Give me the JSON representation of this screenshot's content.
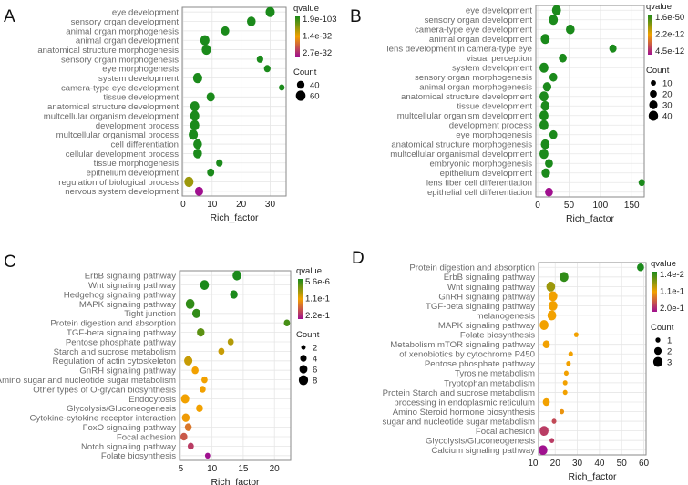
{
  "colors": {
    "low_q": "#1b8a1b",
    "mid_q": "#f2a100",
    "high_q": "#a0108f",
    "grid": "#e6e6e6",
    "frame": "#8a8a8a"
  },
  "chart_data": [
    {
      "panel": "A",
      "type": "scatter",
      "xlabel": "Rich_factor",
      "xlim": [
        -0.3,
        35.5
      ],
      "xticks": [
        0,
        10,
        20,
        30
      ],
      "color_legend": {
        "title": "qvalue",
        "labels": [
          "1.9e-103",
          "1.4e-32",
          "2.7e-32"
        ]
      },
      "size_legend": {
        "title": "Count",
        "values": [
          40,
          60
        ]
      },
      "size_range": [
        25,
        60
      ],
      "terms": [
        {
          "label": "eye development",
          "x": 30,
          "count": 60,
          "q_pos": 0
        },
        {
          "label": "sensory organ development",
          "x": 23.5,
          "count": 55,
          "q_pos": 0
        },
        {
          "label": "animal organ morphogenesis",
          "x": 14.5,
          "count": 50,
          "q_pos": 0
        },
        {
          "label": "animal organ development",
          "x": 7.5,
          "count": 60,
          "q_pos": 0
        },
        {
          "label": "anatomical structure morphogenesis",
          "x": 8,
          "count": 60,
          "q_pos": 0
        },
        {
          "label": "sensory organ morphogenesis",
          "x": 26.5,
          "count": 35,
          "q_pos": 0
        },
        {
          "label": "eye morphogenesis",
          "x": 29,
          "count": 35,
          "q_pos": 0
        },
        {
          "label": "system development",
          "x": 5,
          "count": 60,
          "q_pos": 0
        },
        {
          "label": "camera-type eye development",
          "x": 34,
          "count": 28,
          "q_pos": 0
        },
        {
          "label": "tissue development",
          "x": 9.5,
          "count": 50,
          "q_pos": 0
        },
        {
          "label": "anatomical structure development",
          "x": 4,
          "count": 60,
          "q_pos": 0
        },
        {
          "label": "multcellular organism development",
          "x": 4,
          "count": 60,
          "q_pos": 0
        },
        {
          "label": "development process",
          "x": 4,
          "count": 60,
          "q_pos": 0
        },
        {
          "label": "multcellular organismal process",
          "x": 3.5,
          "count": 60,
          "q_pos": 0
        },
        {
          "label": "cell differentiation",
          "x": 5,
          "count": 55,
          "q_pos": 0
        },
        {
          "label": "cellular development process",
          "x": 5,
          "count": 55,
          "q_pos": 0
        },
        {
          "label": "tissue morphogenesis",
          "x": 12.5,
          "count": 35,
          "q_pos": 0
        },
        {
          "label": "epithelium development",
          "x": 9.5,
          "count": 40,
          "q_pos": 0
        },
        {
          "label": "regulation of biological process",
          "x": 2,
          "count": 60,
          "q_pos": 0.3
        },
        {
          "label": "nervous system development",
          "x": 5.5,
          "count": 50,
          "q_pos": 1
        }
      ]
    },
    {
      "panel": "B",
      "type": "scatter",
      "xlabel": "Rich_factor",
      "xlim": [
        -3,
        170
      ],
      "xticks": [
        0,
        50,
        100,
        150
      ],
      "color_legend": {
        "title": "qvalue",
        "labels": [
          "1.6e-50",
          "2.2e-12",
          "4.5e-12"
        ]
      },
      "size_legend": {
        "title": "Count",
        "values": [
          10,
          20,
          30,
          40
        ]
      },
      "size_range": [
        8,
        42
      ],
      "terms": [
        {
          "label": "eye development",
          "x": 30,
          "count": 40,
          "q_pos": 0
        },
        {
          "label": "sensory organ development",
          "x": 25,
          "count": 40,
          "q_pos": 0
        },
        {
          "label": "camera-type eye development",
          "x": 52,
          "count": 38,
          "q_pos": 0
        },
        {
          "label": "animal organ development",
          "x": 12,
          "count": 40,
          "q_pos": 0
        },
        {
          "label": "lens development in camera-type eye",
          "x": 120,
          "count": 25,
          "q_pos": 0
        },
        {
          "label": "visual perception",
          "x": 40,
          "count": 30,
          "q_pos": 0
        },
        {
          "label": "system development",
          "x": 10,
          "count": 40,
          "q_pos": 0
        },
        {
          "label": "sensory organ morphogenesis",
          "x": 25,
          "count": 30,
          "q_pos": 0
        },
        {
          "label": "animal organ morphogenesis",
          "x": 15,
          "count": 35,
          "q_pos": 0
        },
        {
          "label": "anatomical structure development",
          "x": 10,
          "count": 40,
          "q_pos": 0
        },
        {
          "label": "tissue development",
          "x": 12,
          "count": 38,
          "q_pos": 0
        },
        {
          "label": "multcellular organism development",
          "x": 10,
          "count": 40,
          "q_pos": 0
        },
        {
          "label": "development process",
          "x": 10,
          "count": 40,
          "q_pos": 0
        },
        {
          "label": "eye morphogenesis",
          "x": 25,
          "count": 30,
          "q_pos": 0
        },
        {
          "label": "anatomical structure morphogenesis",
          "x": 12,
          "count": 38,
          "q_pos": 0
        },
        {
          "label": "multcellular organismal development",
          "x": 10,
          "count": 40,
          "q_pos": 0
        },
        {
          "label": "embryonic morphogenesis",
          "x": 18,
          "count": 30,
          "q_pos": 0
        },
        {
          "label": "epithelium development",
          "x": 13,
          "count": 35,
          "q_pos": 0
        },
        {
          "label": "lens fiber cell differentiation",
          "x": 166,
          "count": 18,
          "q_pos": 0
        },
        {
          "label": "epithelial cell differentiation",
          "x": 18,
          "count": 30,
          "q_pos": 1
        }
      ]
    },
    {
      "panel": "C",
      "type": "scatter",
      "xlabel": "Rich_factor",
      "xlim": [
        4.8,
        22.6
      ],
      "xticks": [
        5,
        10,
        15,
        20
      ],
      "color_legend": {
        "title": "qvalue",
        "labels": [
          "5.6e-6",
          "1.1e-1",
          "2.2e-1"
        ]
      },
      "size_legend": {
        "title": "Count",
        "values": [
          2,
          4,
          6,
          8
        ]
      },
      "size_range": [
        2,
        8
      ],
      "terms": [
        {
          "label": "ErbB signaling pathway",
          "x": 14,
          "count": 8,
          "q_pos": 0
        },
        {
          "label": "Wnt signaling pathway",
          "x": 8.8,
          "count": 8,
          "q_pos": 0
        },
        {
          "label": "Hedgehog signaling pathway",
          "x": 13.5,
          "count": 6,
          "q_pos": 0
        },
        {
          "label": "MAPK signaling pathway",
          "x": 6.5,
          "count": 8,
          "q_pos": 0.05
        },
        {
          "label": "Tight junction",
          "x": 7.5,
          "count": 7,
          "q_pos": 0.05
        },
        {
          "label": "Protein digestion and absorption",
          "x": 22,
          "count": 4,
          "q_pos": 0.1
        },
        {
          "label": "TGF-beta signaling pathway",
          "x": 8.2,
          "count": 6,
          "q_pos": 0.15
        },
        {
          "label": "Pentose phosphate pathway",
          "x": 13,
          "count": 4,
          "q_pos": 0.35
        },
        {
          "label": "Starch and sucrose metabolism",
          "x": 11.5,
          "count": 4,
          "q_pos": 0.4
        },
        {
          "label": "Regulation of actin cytoskeleton",
          "x": 6.2,
          "count": 7,
          "q_pos": 0.4
        },
        {
          "label": "GnRH signaling pathway",
          "x": 7.3,
          "count": 5,
          "q_pos": 0.5
        },
        {
          "label": "Amino sugar and nucleotide sugar metabolism",
          "x": 8.8,
          "count": 4,
          "q_pos": 0.5
        },
        {
          "label": "Other types of O-glycan biosynthesis",
          "x": 8.5,
          "count": 4,
          "q_pos": 0.5
        },
        {
          "label": "Endocytosis",
          "x": 5.7,
          "count": 7,
          "q_pos": 0.5
        },
        {
          "label": "Glycolysis/Gluconeogenesis",
          "x": 8,
          "count": 5,
          "q_pos": 0.5
        },
        {
          "label": "Cytokine-cytokine receptor interaction",
          "x": 5.8,
          "count": 6,
          "q_pos": 0.52
        },
        {
          "label": "FoxO signaling pathway",
          "x": 6.2,
          "count": 5,
          "q_pos": 0.65
        },
        {
          "label": "Focal adhesion",
          "x": 5.5,
          "count": 5,
          "q_pos": 0.75
        },
        {
          "label": "Notch signaling pathway",
          "x": 6.6,
          "count": 4,
          "q_pos": 0.85
        },
        {
          "label": "Folate biosynthesis",
          "x": 9.3,
          "count": 3,
          "q_pos": 1
        }
      ]
    },
    {
      "panel": "D",
      "type": "scatter",
      "xlabel": "Rich_factor",
      "xlim": [
        12.5,
        61
      ],
      "xticks": [
        10,
        20,
        30,
        40,
        50,
        60
      ],
      "color_legend": {
        "title": "qvalue",
        "labels": [
          "1.4e-2",
          "1.1e-1",
          "2.0e-1"
        ]
      },
      "size_legend": {
        "title": "Count",
        "values": [
          1,
          2,
          3
        ]
      },
      "size_range": [
        1,
        3
      ],
      "terms": [
        {
          "label": "Protein digestion and absorption",
          "x": 58.5,
          "count": 2,
          "q_pos": 0
        },
        {
          "label": "ErbB signaling pathway",
          "x": 24,
          "count": 3,
          "q_pos": 0.05
        },
        {
          "label": "Wnt signaling pathway",
          "x": 18,
          "count": 3,
          "q_pos": 0.3
        },
        {
          "label": "GnRH signaling pathway",
          "x": 19,
          "count": 3,
          "q_pos": 0.5
        },
        {
          "label": "TGF-beta signaling pathway",
          "x": 19,
          "count": 3,
          "q_pos": 0.5
        },
        {
          "label": "melanogenesis",
          "x": 18.5,
          "count": 3,
          "q_pos": 0.5
        },
        {
          "label": "MAPK signaling pathway",
          "x": 15,
          "count": 3,
          "q_pos": 0.5
        },
        {
          "label": "Folate biosynthesis",
          "x": 29.5,
          "count": 1,
          "q_pos": 0.5
        },
        {
          "label": "Metabolism mTOR signaling pathway",
          "x": 16,
          "count": 2,
          "q_pos": 0.5
        },
        {
          "label": "of xenobiotics by cytochrome P450",
          "x": 27,
          "count": 1,
          "q_pos": 0.5
        },
        {
          "label": "Pentose phosphate pathway",
          "x": 26,
          "count": 1,
          "q_pos": 0.5
        },
        {
          "label": "Tyrosine metabolism",
          "x": 25,
          "count": 1,
          "q_pos": 0.5
        },
        {
          "label": "Tryptophan metabolism",
          "x": 24.5,
          "count": 1,
          "q_pos": 0.5
        },
        {
          "label": "Protein Starch and sucrose metabolism",
          "x": 24.5,
          "count": 1,
          "q_pos": 0.5
        },
        {
          "label": "processing in endoplasmic reticulum",
          "x": 16,
          "count": 2,
          "q_pos": 0.5
        },
        {
          "label": "Amino Steroid hormone biosynthesis",
          "x": 23,
          "count": 1,
          "q_pos": 0.55
        },
        {
          "label": "sugar and nucleotide sugar metabolism",
          "x": 19.5,
          "count": 1,
          "q_pos": 0.8
        },
        {
          "label": "Focal adhesion",
          "x": 15,
          "count": 3,
          "q_pos": 0.85
        },
        {
          "label": "Glycolysis/Gluconeogenesis",
          "x": 18.5,
          "count": 1,
          "q_pos": 0.85
        },
        {
          "label": "Calcium signaling pathway",
          "x": 14.5,
          "count": 3,
          "q_pos": 1
        }
      ]
    }
  ]
}
